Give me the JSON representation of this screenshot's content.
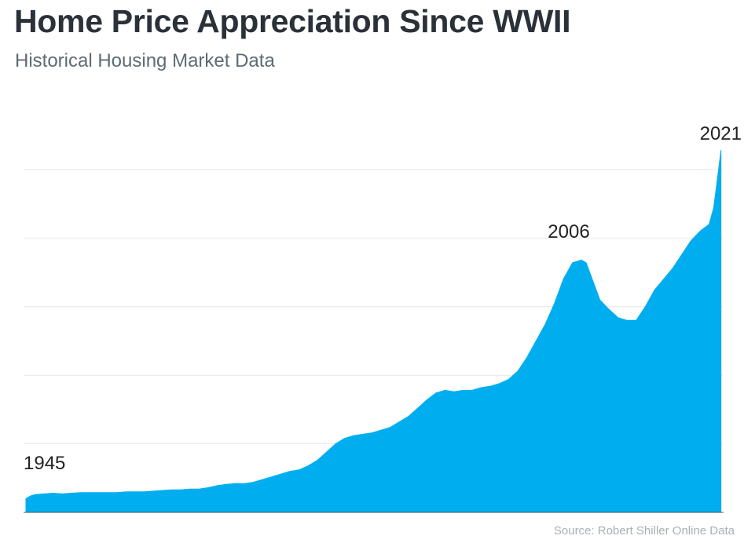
{
  "title": "Home Price Appreciation Since WWII",
  "subtitle": "Historical Housing Market Data",
  "source": "Source: Robert Shiller Online Data",
  "colors": {
    "area": "#00aeef",
    "grid": "#e6e6e6",
    "title": "#2b3138",
    "subtitle": "#5d6b74",
    "annotation": "#222222",
    "source": "#a9b0b5"
  },
  "chart_data": {
    "type": "area",
    "title": "Home Price Appreciation Since WWII",
    "subtitle": "Historical Housing Market Data",
    "xlabel": "",
    "ylabel": "",
    "grid": true,
    "ylim": [
      0,
      250
    ],
    "xlim": [
      1945,
      2021.5
    ],
    "annotations": [
      {
        "label": "1945",
        "x": 1945
      },
      {
        "label": "2006",
        "x": 2006
      },
      {
        "label": "2021",
        "x": 2021
      }
    ],
    "series": [
      {
        "x": [
          1945,
          1945.5,
          1946,
          1947,
          1948,
          1949,
          1950,
          1951,
          1952,
          1953,
          1954,
          1955,
          1956,
          1957,
          1958,
          1959,
          1960,
          1961,
          1962,
          1963,
          1964,
          1965,
          1966,
          1967,
          1968,
          1969,
          1970,
          1971,
          1972,
          1973,
          1974,
          1975,
          1976,
          1977,
          1978,
          1979,
          1980,
          1981,
          1982,
          1983,
          1984,
          1985,
          1986,
          1987,
          1988,
          1989,
          1990,
          1991,
          1992,
          1993,
          1994,
          1995,
          1996,
          1997,
          1998,
          1999,
          2000,
          2001,
          2002,
          2003,
          2004,
          2005,
          2006,
          2006.5,
          2007,
          2008,
          2009,
          2010,
          2011,
          2012,
          2013,
          2014,
          2015,
          2016,
          2017,
          2018,
          2019,
          2020,
          2020.5,
          2021,
          2021.3
        ],
        "values": [
          10,
          12,
          13,
          13.5,
          14,
          13.5,
          14,
          14.5,
          14.5,
          14.5,
          14.5,
          14.5,
          15,
          15,
          15,
          15.5,
          16,
          16.5,
          16.5,
          17,
          17,
          18,
          19.5,
          20.5,
          21,
          21,
          22,
          24,
          26,
          28,
          30,
          31,
          34,
          38,
          44,
          50,
          54,
          56,
          57,
          58,
          60,
          62,
          66,
          70,
          76,
          82,
          87,
          89,
          88,
          89,
          89,
          91,
          92,
          94,
          97,
          103,
          113,
          125,
          137,
          152,
          170,
          182,
          184,
          182,
          173,
          155,
          148,
          142,
          140,
          140,
          150,
          162,
          170,
          178,
          188,
          198,
          205,
          210,
          222,
          248,
          264
        ]
      }
    ]
  }
}
